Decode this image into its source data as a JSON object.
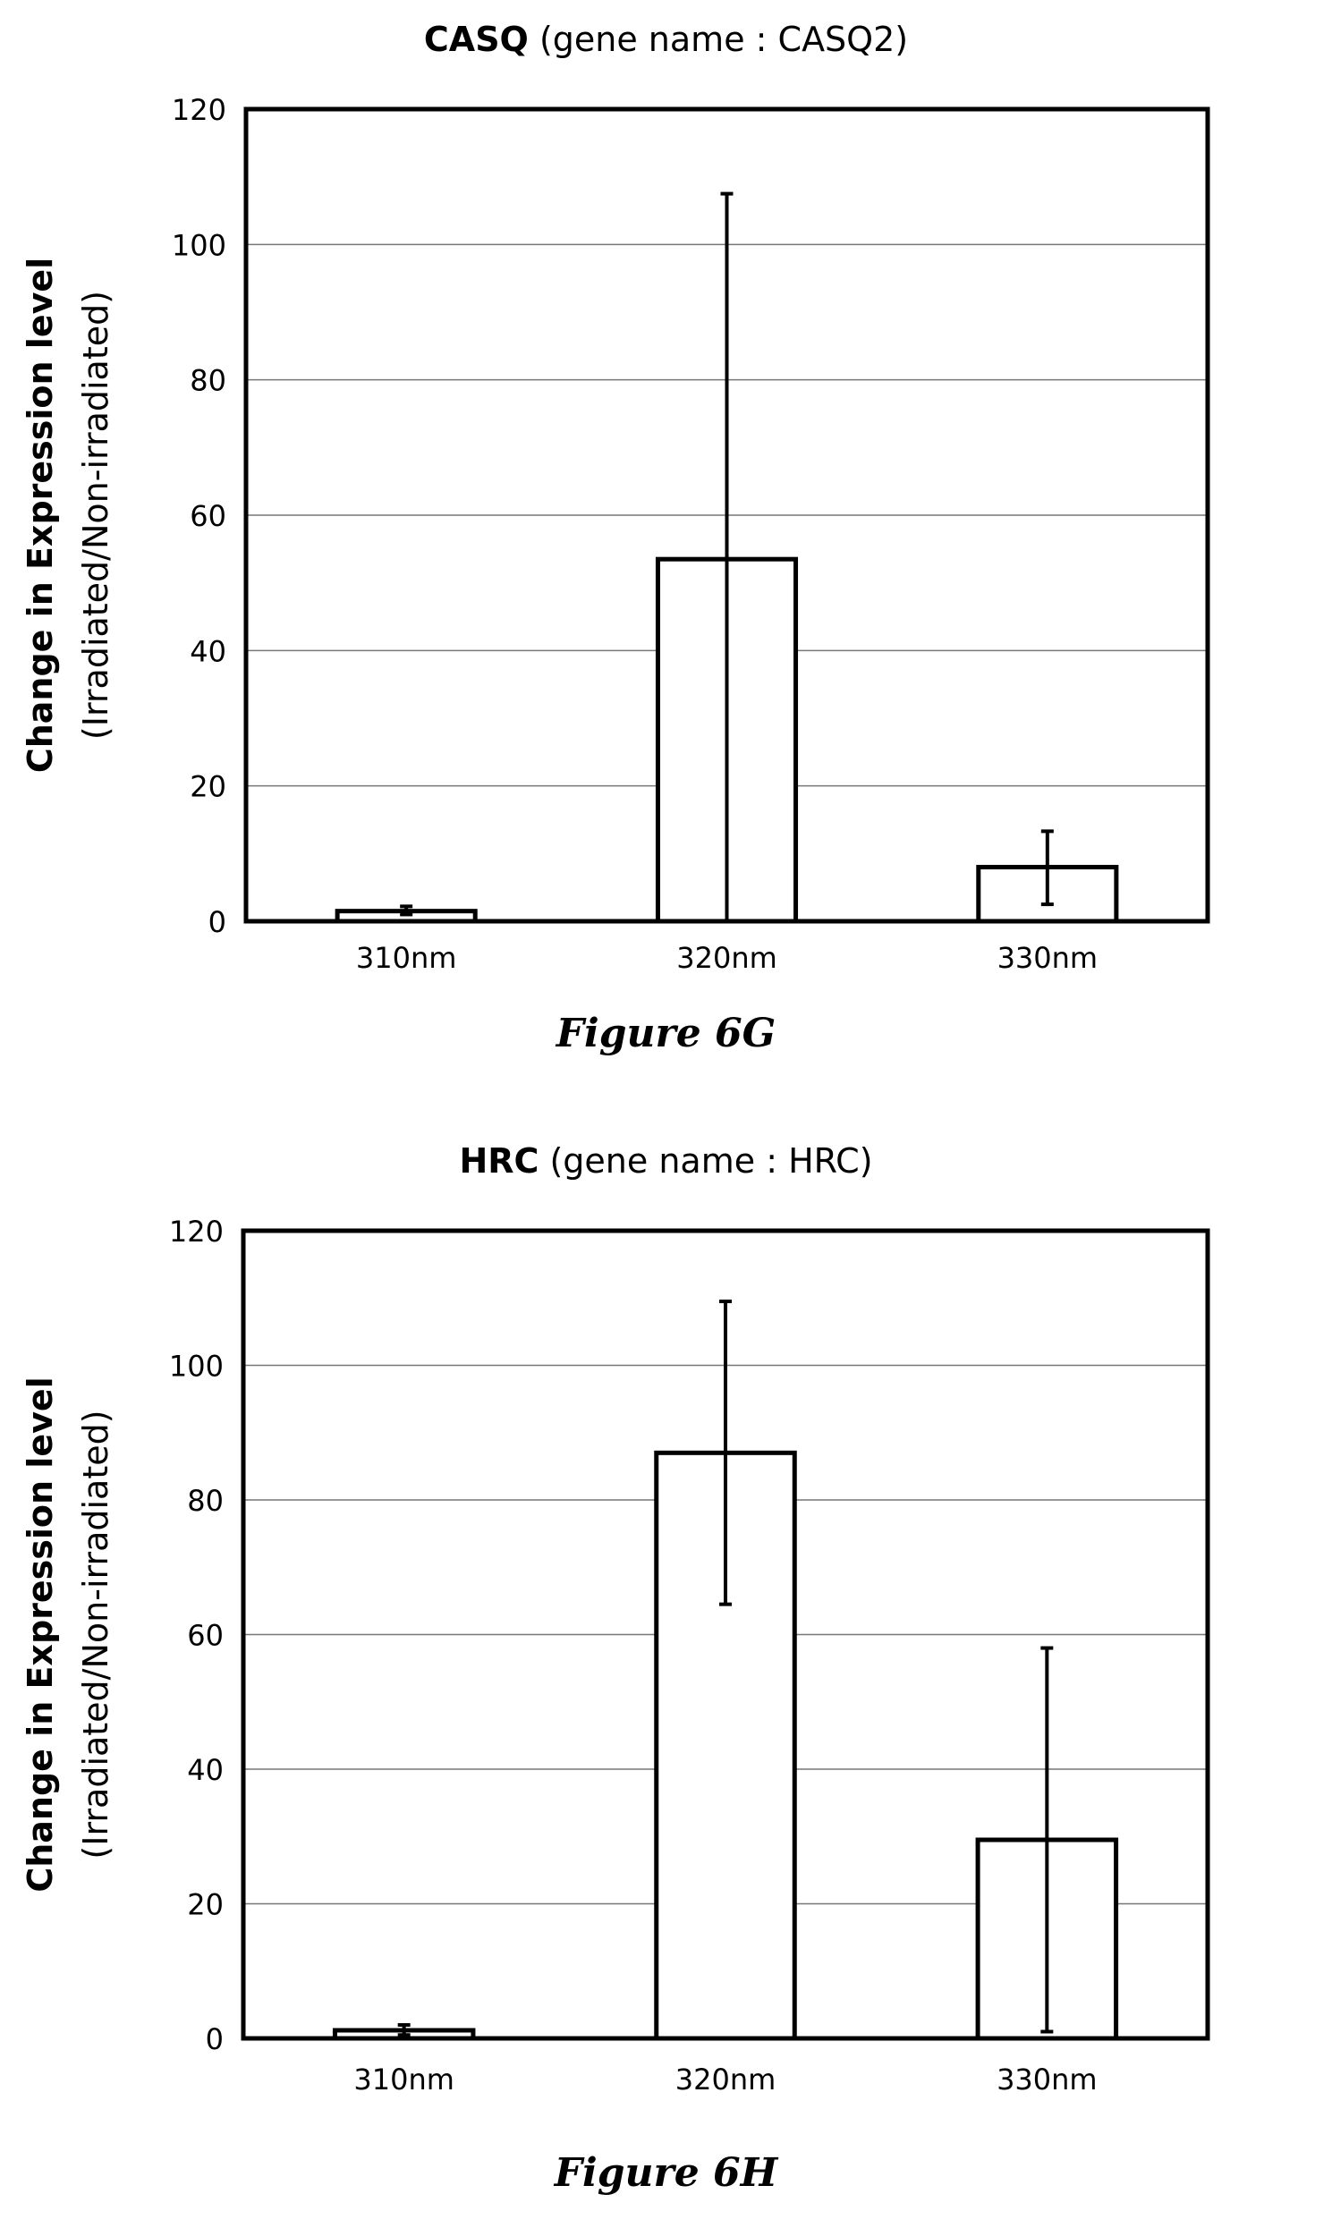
{
  "chart_data": [
    {
      "type": "bar",
      "title_bold": "CASQ",
      "title_rest": " (gene name : CASQ2)",
      "ylabel_line1": "Change in Expression level",
      "ylabel_line2": "(Irradiated/Non-irradiated)",
      "xlabel": "",
      "categories": [
        "310nm",
        "320nm",
        "330nm"
      ],
      "values": [
        1.5,
        53.5,
        8
      ],
      "error_low": [
        1.0,
        0.0,
        2.5
      ],
      "error_high": [
        2.2,
        107.5,
        13.3
      ],
      "ylim": [
        0,
        120
      ],
      "yticks": [
        "0",
        "20",
        "40",
        "60",
        "80",
        "100",
        "120"
      ],
      "grid": true,
      "bar_fill": "#ffffff",
      "bar_stroke": "#000000",
      "caption": "Figure 6G"
    },
    {
      "type": "bar",
      "title_bold": "HRC",
      "title_rest": " (gene name : HRC)",
      "ylabel_line1": "Change in Expression level",
      "ylabel_line2": "(Irradiated/Non-irradiated)",
      "xlabel": "",
      "categories": [
        "310nm",
        "320nm",
        "330nm"
      ],
      "values": [
        1.2,
        87,
        29.5
      ],
      "error_low": [
        0.5,
        64.5,
        1.0
      ],
      "error_high": [
        2.0,
        109.5,
        58.0
      ],
      "ylim": [
        0,
        120
      ],
      "yticks": [
        "0",
        "20",
        "40",
        "60",
        "80",
        "100",
        "120"
      ],
      "grid": true,
      "bar_fill": "#ffffff",
      "bar_stroke": "#000000",
      "caption": "Figure 6H"
    }
  ]
}
